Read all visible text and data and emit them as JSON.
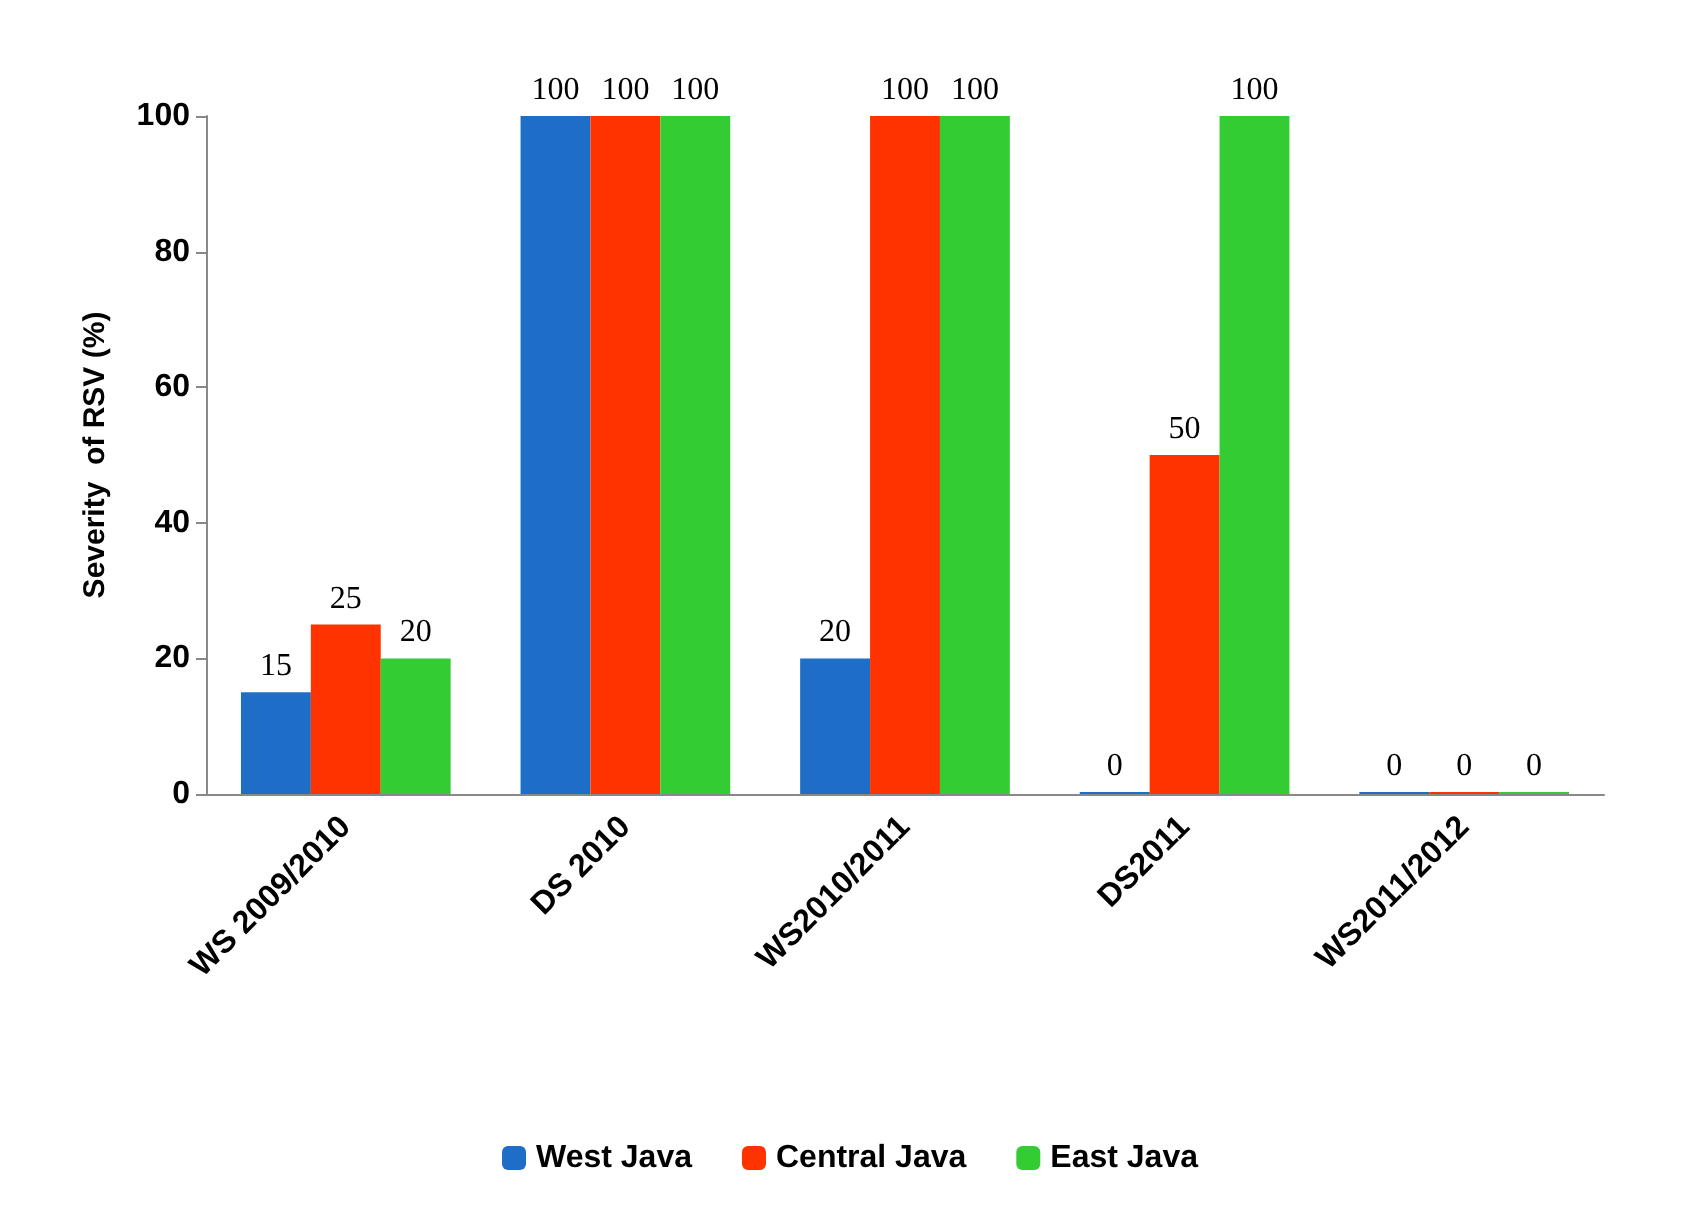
{
  "chart_data": {
    "type": "bar",
    "ylabel": "Severity  of RSV (%)",
    "categories": [
      "WS 2009/2010",
      "DS 2010",
      "WS2010/2011",
      "DS2011",
      "WS2011/2012"
    ],
    "series": [
      {
        "name": "West Java",
        "color": "#1e6ec8",
        "values": [
          15,
          100,
          20,
          0,
          0
        ]
      },
      {
        "name": "Central Java",
        "color": "#ff3300",
        "values": [
          25,
          100,
          100,
          50,
          0
        ]
      },
      {
        "name": "East Java",
        "color": "#33cc33",
        "values": [
          20,
          100,
          100,
          100,
          0
        ]
      }
    ],
    "ylim": [
      0,
      100
    ],
    "yticks": [
      0,
      20,
      40,
      60,
      80,
      100
    ],
    "grid": false,
    "legend": "bottom",
    "data_labels": true
  }
}
